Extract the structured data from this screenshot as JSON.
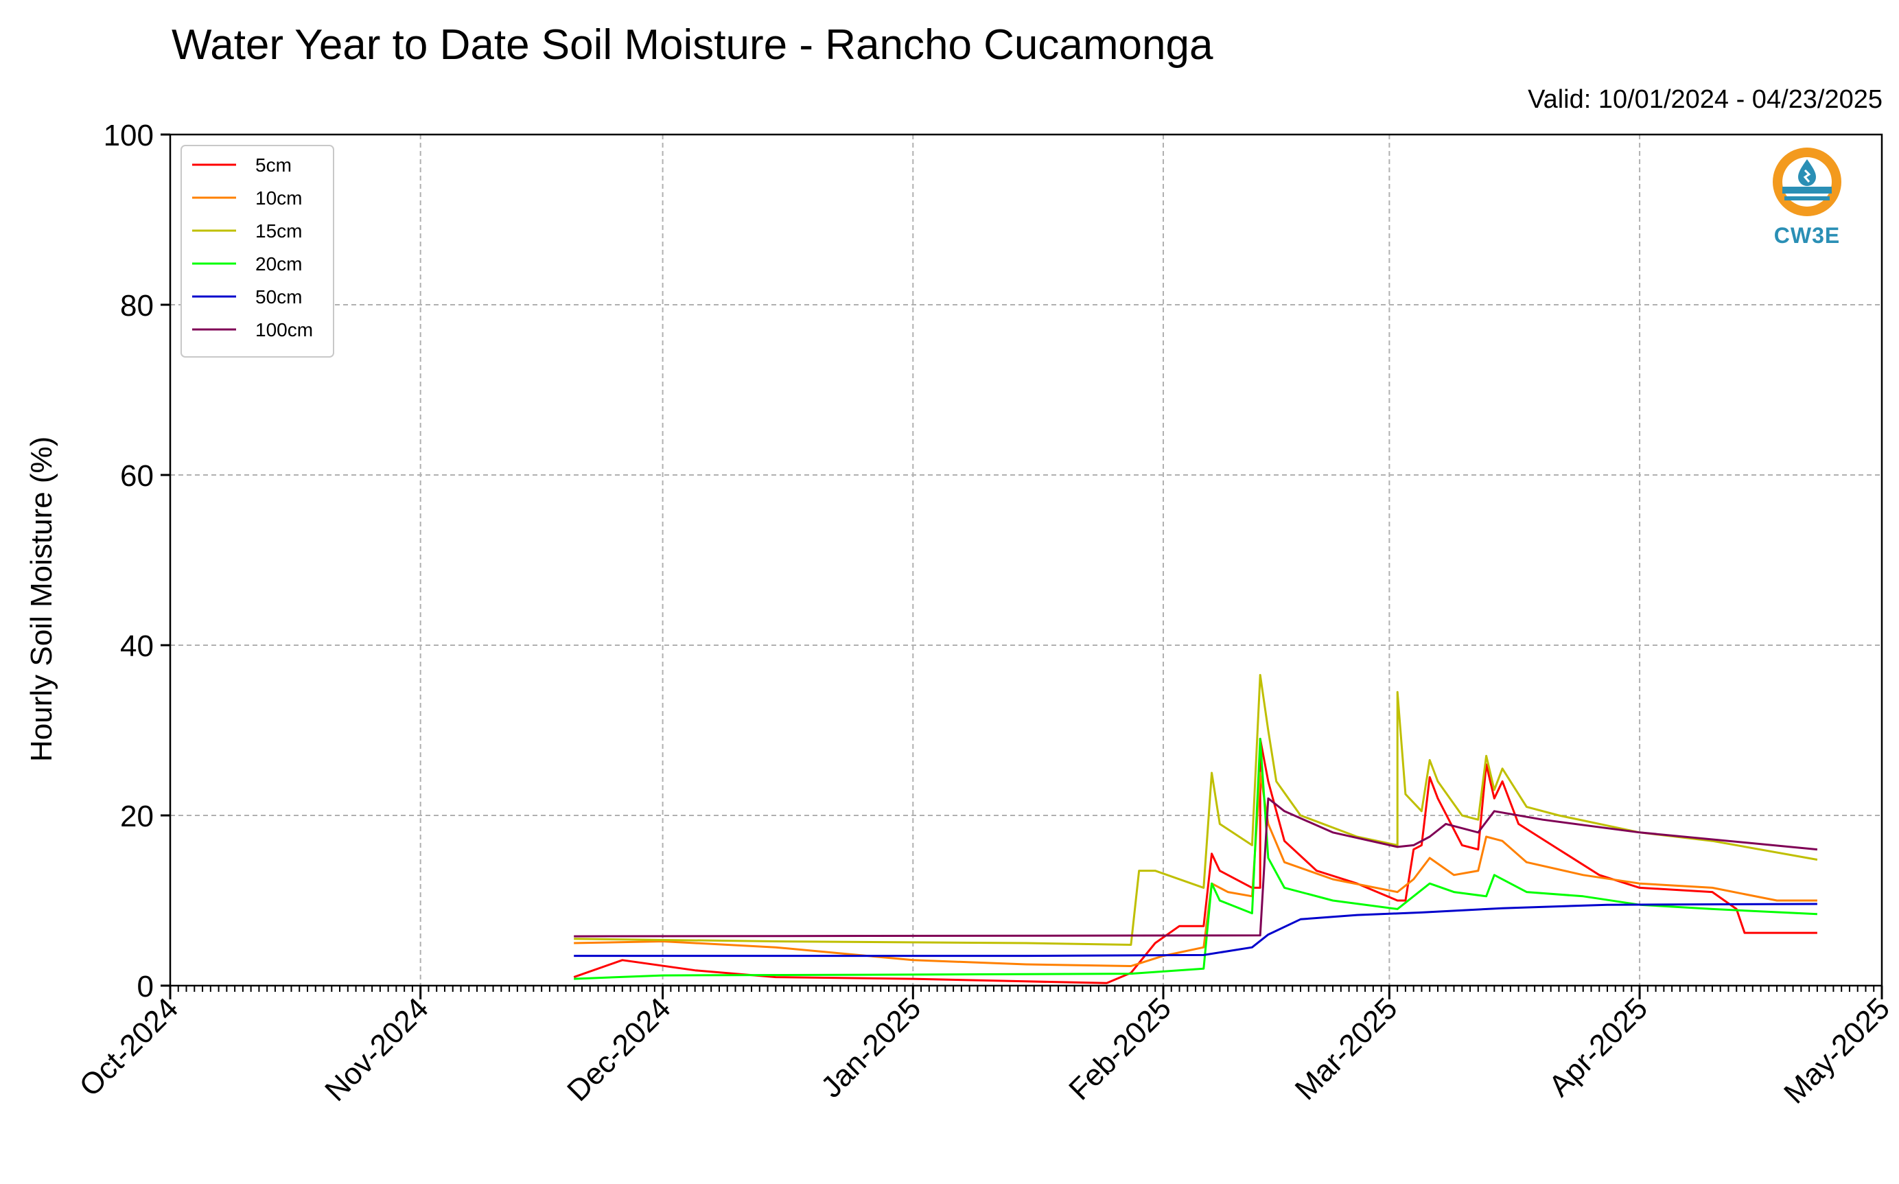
{
  "chart_data": {
    "type": "line",
    "title": "Water Year to Date Soil Moisture - Rancho Cucamonga",
    "subtitle": "Valid: 10/01/2024 - 04/23/2025",
    "xlabel": "",
    "ylabel": "Hourly Soil Moisture (%)",
    "ylim": [
      0,
      100
    ],
    "yticks": [
      0,
      20,
      40,
      60,
      80,
      100
    ],
    "xlim": [
      "2024-10-01",
      "2025-05-01"
    ],
    "xticks": [
      "Oct-2024",
      "Nov-2024",
      "Dec-2024",
      "Jan-2025",
      "Feb-2025",
      "Mar-2025",
      "Apr-2025",
      "May-2025"
    ],
    "grid": true,
    "legend_position": "top-left",
    "series": [
      {
        "name": "5cm",
        "color": "#ff0000",
        "points": [
          [
            "2024-11-20",
            1.0
          ],
          [
            "2024-11-26",
            3.0
          ],
          [
            "2024-12-05",
            1.8
          ],
          [
            "2024-12-15",
            1.0
          ],
          [
            "2025-01-01",
            0.8
          ],
          [
            "2025-01-15",
            0.5
          ],
          [
            "2025-01-25",
            0.3
          ],
          [
            "2025-01-28",
            1.5
          ],
          [
            "2025-01-31",
            5.0
          ],
          [
            "2025-02-03",
            7.0
          ],
          [
            "2025-02-06",
            7.0
          ],
          [
            "2025-02-07",
            15.5
          ],
          [
            "2025-02-08",
            13.5
          ],
          [
            "2025-02-12",
            11.5
          ],
          [
            "2025-02-13",
            11.5
          ],
          [
            "2025-02-13",
            29.0
          ],
          [
            "2025-02-14",
            24.0
          ],
          [
            "2025-02-16",
            17.0
          ],
          [
            "2025-02-20",
            13.5
          ],
          [
            "2025-02-25",
            12.0
          ],
          [
            "2025-03-02",
            10.0
          ],
          [
            "2025-03-03",
            10.0
          ],
          [
            "2025-03-04",
            16.0
          ],
          [
            "2025-03-05",
            16.5
          ],
          [
            "2025-03-06",
            24.5
          ],
          [
            "2025-03-07",
            22.0
          ],
          [
            "2025-03-10",
            16.5
          ],
          [
            "2025-03-12",
            16.0
          ],
          [
            "2025-03-13",
            26.0
          ],
          [
            "2025-03-14",
            22.0
          ],
          [
            "2025-03-15",
            24.0
          ],
          [
            "2025-03-17",
            19.0
          ],
          [
            "2025-03-22",
            16.0
          ],
          [
            "2025-03-27",
            13.0
          ],
          [
            "2025-04-01",
            11.5
          ],
          [
            "2025-04-10",
            11.0
          ],
          [
            "2025-04-13",
            9.0
          ],
          [
            "2025-04-14",
            6.2
          ],
          [
            "2025-04-23",
            6.2
          ]
        ]
      },
      {
        "name": "10cm",
        "color": "#ff8000",
        "points": [
          [
            "2024-11-20",
            5.0
          ],
          [
            "2024-12-01",
            5.2
          ],
          [
            "2024-12-15",
            4.5
          ],
          [
            "2025-01-01",
            3.0
          ],
          [
            "2025-01-15",
            2.5
          ],
          [
            "2025-01-28",
            2.3
          ],
          [
            "2025-02-01",
            3.5
          ],
          [
            "2025-02-06",
            4.5
          ],
          [
            "2025-02-07",
            12.0
          ],
          [
            "2025-02-09",
            11.0
          ],
          [
            "2025-02-12",
            10.5
          ],
          [
            "2025-02-13",
            25.0
          ],
          [
            "2025-02-14",
            19.0
          ],
          [
            "2025-02-16",
            14.5
          ],
          [
            "2025-02-22",
            12.5
          ],
          [
            "2025-03-02",
            11.0
          ],
          [
            "2025-03-04",
            12.5
          ],
          [
            "2025-03-06",
            15.0
          ],
          [
            "2025-03-09",
            13.0
          ],
          [
            "2025-03-12",
            13.5
          ],
          [
            "2025-03-13",
            17.5
          ],
          [
            "2025-03-15",
            17.0
          ],
          [
            "2025-03-18",
            14.5
          ],
          [
            "2025-03-25",
            13.0
          ],
          [
            "2025-04-01",
            12.0
          ],
          [
            "2025-04-10",
            11.5
          ],
          [
            "2025-04-18",
            10.0
          ],
          [
            "2025-04-23",
            10.0
          ]
        ]
      },
      {
        "name": "15cm",
        "color": "#bfbf00",
        "points": [
          [
            "2024-11-20",
            5.5
          ],
          [
            "2024-12-15",
            5.2
          ],
          [
            "2025-01-15",
            5.0
          ],
          [
            "2025-01-28",
            4.8
          ],
          [
            "2025-01-29",
            13.5
          ],
          [
            "2025-01-31",
            13.5
          ],
          [
            "2025-02-06",
            11.5
          ],
          [
            "2025-02-07",
            25.0
          ],
          [
            "2025-02-08",
            19.0
          ],
          [
            "2025-02-12",
            16.5
          ],
          [
            "2025-02-13",
            36.5
          ],
          [
            "2025-02-14",
            30.0
          ],
          [
            "2025-02-15",
            24.0
          ],
          [
            "2025-02-18",
            20.0
          ],
          [
            "2025-02-25",
            17.5
          ],
          [
            "2025-03-02",
            16.5
          ],
          [
            "2025-03-02",
            34.5
          ],
          [
            "2025-03-03",
            22.5
          ],
          [
            "2025-03-05",
            20.5
          ],
          [
            "2025-03-06",
            26.5
          ],
          [
            "2025-03-07",
            24.0
          ],
          [
            "2025-03-10",
            20.0
          ],
          [
            "2025-03-12",
            19.5
          ],
          [
            "2025-03-13",
            27.0
          ],
          [
            "2025-03-14",
            23.0
          ],
          [
            "2025-03-15",
            25.5
          ],
          [
            "2025-03-18",
            21.0
          ],
          [
            "2025-03-22",
            20.0
          ],
          [
            "2025-04-01",
            18.0
          ],
          [
            "2025-04-10",
            17.0
          ],
          [
            "2025-04-23",
            14.8
          ]
        ]
      },
      {
        "name": "20cm",
        "color": "#00ff00",
        "points": [
          [
            "2024-11-20",
            0.8
          ],
          [
            "2024-12-01",
            1.2
          ],
          [
            "2025-01-01",
            1.3
          ],
          [
            "2025-01-28",
            1.4
          ],
          [
            "2025-02-06",
            2.0
          ],
          [
            "2025-02-07",
            12.0
          ],
          [
            "2025-02-08",
            10.0
          ],
          [
            "2025-02-12",
            8.5
          ],
          [
            "2025-02-13",
            29.0
          ],
          [
            "2025-02-14",
            15.0
          ],
          [
            "2025-02-16",
            11.5
          ],
          [
            "2025-02-22",
            10.0
          ],
          [
            "2025-03-02",
            9.0
          ],
          [
            "2025-03-04",
            10.5
          ],
          [
            "2025-03-06",
            12.0
          ],
          [
            "2025-03-09",
            11.0
          ],
          [
            "2025-03-13",
            10.5
          ],
          [
            "2025-03-14",
            13.0
          ],
          [
            "2025-03-18",
            11.0
          ],
          [
            "2025-03-25",
            10.5
          ],
          [
            "2025-04-01",
            9.5
          ],
          [
            "2025-04-10",
            9.0
          ],
          [
            "2025-04-23",
            8.4
          ]
        ]
      },
      {
        "name": "50cm",
        "color": "#0000cc",
        "points": [
          [
            "2024-11-20",
            3.5
          ],
          [
            "2025-01-15",
            3.5
          ],
          [
            "2025-02-06",
            3.6
          ],
          [
            "2025-02-12",
            4.5
          ],
          [
            "2025-02-14",
            6.0
          ],
          [
            "2025-02-18",
            7.8
          ],
          [
            "2025-02-25",
            8.3
          ],
          [
            "2025-03-05",
            8.6
          ],
          [
            "2025-03-15",
            9.1
          ],
          [
            "2025-03-28",
            9.5
          ],
          [
            "2025-04-23",
            9.6
          ]
        ]
      },
      {
        "name": "100cm",
        "color": "#7f0055",
        "points": [
          [
            "2024-11-20",
            5.8
          ],
          [
            "2025-02-13",
            5.9
          ],
          [
            "2025-02-14",
            22.0
          ],
          [
            "2025-02-16",
            20.5
          ],
          [
            "2025-02-22",
            18.0
          ],
          [
            "2025-03-02",
            16.3
          ],
          [
            "2025-03-04",
            16.5
          ],
          [
            "2025-03-06",
            17.5
          ],
          [
            "2025-03-08",
            19.0
          ],
          [
            "2025-03-12",
            18.0
          ],
          [
            "2025-03-14",
            20.5
          ],
          [
            "2025-03-20",
            19.5
          ],
          [
            "2025-04-01",
            18.0
          ],
          [
            "2025-04-23",
            16.0
          ]
        ]
      }
    ]
  },
  "logo": {
    "text": "CW3E",
    "ring_color": "#f39a1e",
    "drop_color": "#2a8fb5"
  }
}
